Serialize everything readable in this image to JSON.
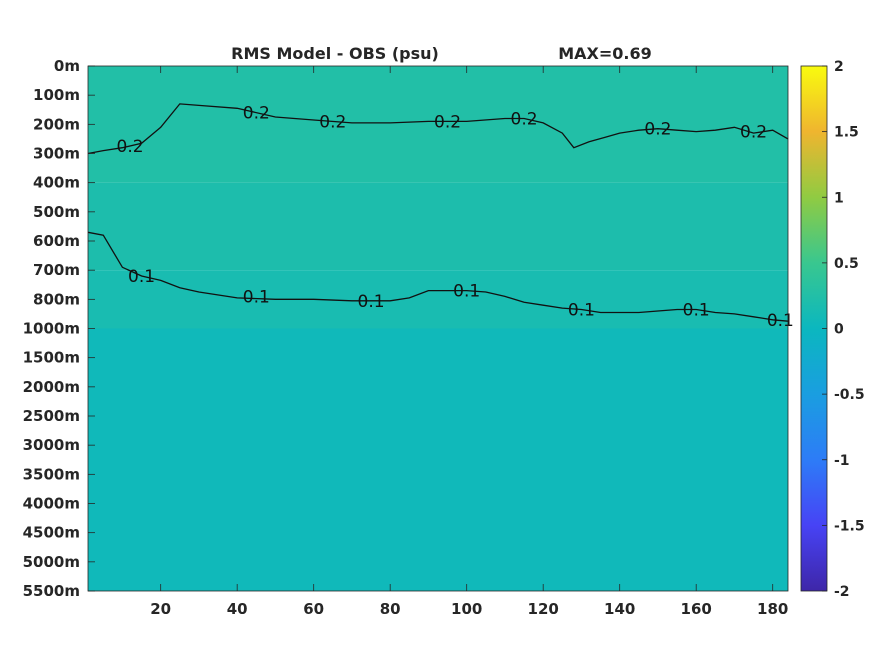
{
  "chart_data": {
    "type": "heatmap",
    "title": "RMS Model - OBS (psu)",
    "max_label": "MAX=0.69",
    "xlabel": "",
    "ylabel": "",
    "x_ticks": [
      20,
      40,
      60,
      80,
      100,
      120,
      140,
      160,
      180
    ],
    "xlim": [
      1,
      184
    ],
    "y_tick_labels": [
      "0m",
      "100m",
      "200m",
      "300m",
      "400m",
      "500m",
      "600m",
      "700m",
      "800m",
      "1000m",
      "1500m",
      "2000m",
      "2500m",
      "3000m",
      "3500m",
      "4000m",
      "4500m",
      "5000m",
      "5500m"
    ],
    "colorbar": {
      "colormap": "parula",
      "range": [
        -2,
        2
      ],
      "ticks": [
        2,
        1.5,
        1,
        0.5,
        0,
        -0.5,
        -1,
        -1.5,
        -2
      ],
      "tick_labels": [
        "2",
        "1.5",
        "1",
        "0.5",
        "0",
        "-0.5",
        "-1",
        "-1.5",
        "-2"
      ]
    },
    "field_layers": [
      {
        "depth_band": "0m-400m",
        "approx_value": 0.25
      },
      {
        "depth_band": "400m-700m",
        "approx_value": 0.2
      },
      {
        "depth_band": "700m-1000m",
        "approx_value": 0.15
      },
      {
        "depth_band": "1000m-5500m",
        "approx_value": 0.05
      }
    ],
    "contours": [
      {
        "level_label": "0.2",
        "x": [
          1,
          5,
          10,
          15,
          20,
          25,
          30,
          40,
          50,
          60,
          70,
          80,
          90,
          100,
          110,
          115,
          120,
          125,
          128,
          132,
          136,
          140,
          145,
          150,
          155,
          160,
          165,
          170,
          175,
          180,
          184
        ],
        "depth_idx": [
          3.0,
          2.9,
          2.8,
          2.65,
          2.1,
          1.3,
          1.35,
          1.45,
          1.75,
          1.85,
          1.95,
          1.95,
          1.9,
          1.9,
          1.8,
          1.8,
          1.95,
          2.3,
          2.8,
          2.6,
          2.45,
          2.3,
          2.2,
          2.15,
          2.2,
          2.25,
          2.2,
          2.1,
          2.3,
          2.2,
          2.5
        ]
      },
      {
        "level_label": "0.1",
        "x": [
          1,
          5,
          10,
          15,
          20,
          25,
          30,
          40,
          50,
          60,
          70,
          80,
          85,
          90,
          100,
          105,
          110,
          115,
          120,
          125,
          130,
          135,
          140,
          145,
          150,
          155,
          160,
          165,
          170,
          175,
          180,
          184
        ],
        "depth_idx": [
          5.7,
          5.8,
          6.9,
          7.2,
          7.35,
          7.6,
          7.75,
          7.95,
          8.0,
          8.0,
          8.05,
          8.05,
          7.95,
          7.7,
          7.7,
          7.75,
          7.9,
          8.1,
          8.2,
          8.3,
          8.35,
          8.45,
          8.45,
          8.45,
          8.4,
          8.35,
          8.35,
          8.45,
          8.5,
          8.6,
          8.7,
          8.75
        ]
      }
    ],
    "contour_labels": [
      {
        "text": "0.2",
        "x": 12,
        "depth_idx": 2.75
      },
      {
        "text": "0.2",
        "x": 45,
        "depth_idx": 1.6
      },
      {
        "text": "0.2",
        "x": 65,
        "depth_idx": 1.9
      },
      {
        "text": "0.2",
        "x": 95,
        "depth_idx": 1.9
      },
      {
        "text": "0.2",
        "x": 115,
        "depth_idx": 1.8
      },
      {
        "text": "0.2",
        "x": 150,
        "depth_idx": 2.15
      },
      {
        "text": "0.2",
        "x": 175,
        "depth_idx": 2.25
      },
      {
        "text": "0.1",
        "x": 15,
        "depth_idx": 7.2
      },
      {
        "text": "0.1",
        "x": 45,
        "depth_idx": 7.9
      },
      {
        "text": "0.1",
        "x": 75,
        "depth_idx": 8.05
      },
      {
        "text": "0.1",
        "x": 100,
        "depth_idx": 7.7
      },
      {
        "text": "0.1",
        "x": 130,
        "depth_idx": 8.35
      },
      {
        "text": "0.1",
        "x": 160,
        "depth_idx": 8.35
      },
      {
        "text": "0.1",
        "x": 182,
        "depth_idx": 8.7
      }
    ]
  }
}
